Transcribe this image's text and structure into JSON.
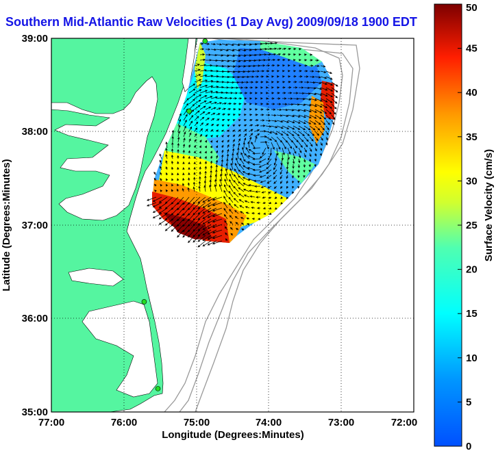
{
  "title": "Southern Mid-Atlantic Raw Velocities (1 Day Avg) 2009/09/18 1900 EDT",
  "map": {
    "xlabel": "Longitude (Degrees:Minutes)",
    "ylabel": "Latitude (Degrees:Minutes)",
    "x_ticks": [
      "77:00",
      "76:00",
      "75:00",
      "74:00",
      "73:00",
      "72:00"
    ],
    "y_ticks": [
      "39:00",
      "38:00",
      "37:00",
      "36:00",
      "35:00"
    ],
    "lon_range": [
      -77,
      -72
    ],
    "lat_range": [
      35,
      39
    ],
    "land_color": "#55f5a0",
    "water_color": "#ffffff",
    "gridlines": "dotted"
  },
  "colorbar": {
    "label": "Surface Velocity (cm/s)",
    "ticks": [
      "50",
      "45",
      "40",
      "35",
      "30",
      "25",
      "20",
      "15",
      "10",
      "5",
      "0"
    ],
    "range": [
      0,
      50
    ],
    "colormap": "jet"
  },
  "stations": [
    {
      "lon": -74.88,
      "lat": 38.97
    },
    {
      "lon": -75.1,
      "lat": 38.22
    },
    {
      "lon": -75.72,
      "lat": 36.18
    },
    {
      "lon": -75.53,
      "lat": 35.25
    }
  ]
}
